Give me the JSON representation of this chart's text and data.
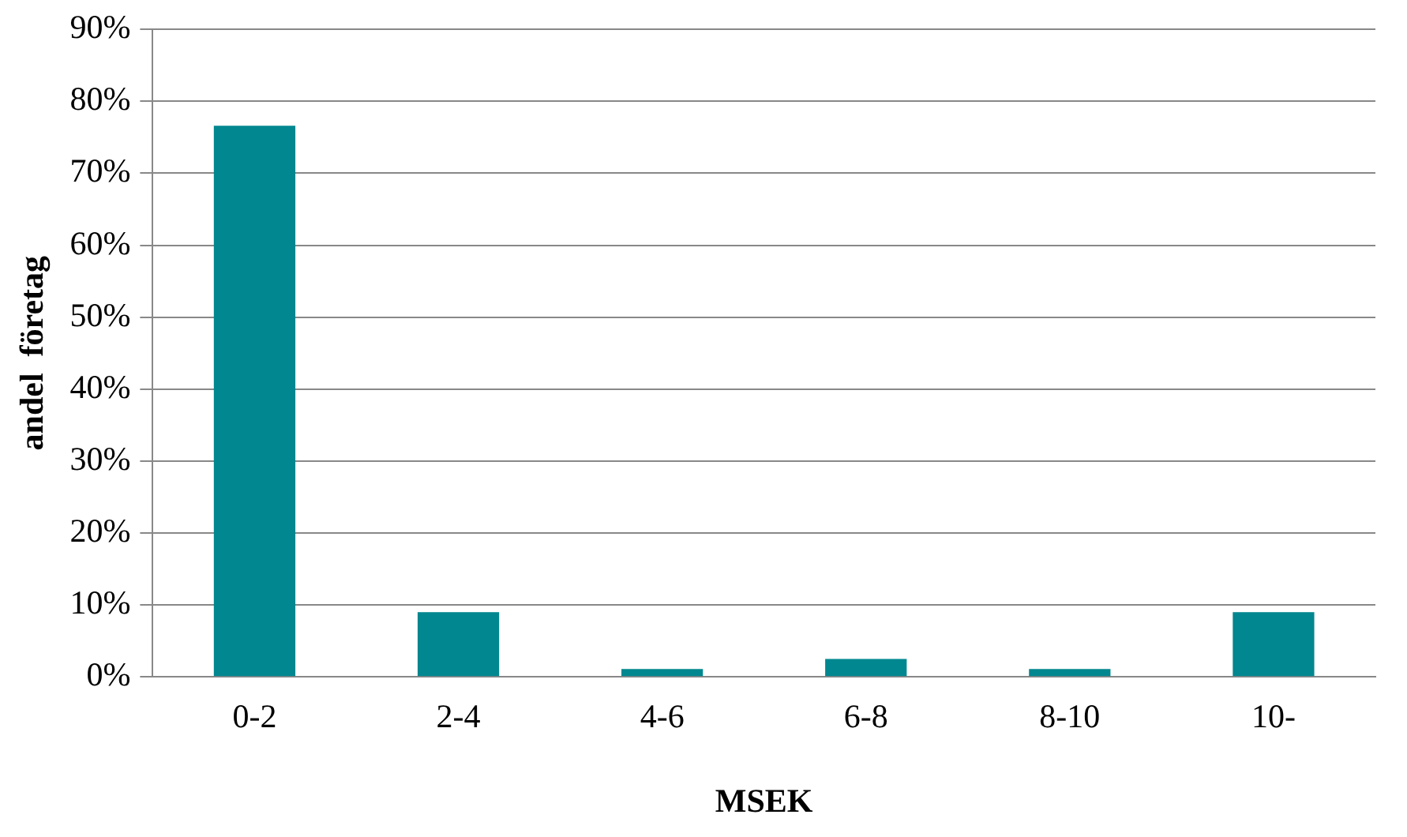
{
  "chart_data": {
    "type": "bar",
    "xlabel": "MSEK",
    "ylabel": "andel  företag",
    "categories": [
      "0-2",
      "2-4",
      "4-6",
      "6-8",
      "8-10",
      "10-"
    ],
    "values": [
      76.6,
      9.0,
      1.1,
      2.5,
      1.1,
      9.0
    ],
    "color": "#00878f",
    "ylim": [
      0,
      90
    ],
    "yticks": [
      {
        "value": 0,
        "label": "0%"
      },
      {
        "value": 10,
        "label": "10%"
      },
      {
        "value": 20,
        "label": "20%"
      },
      {
        "value": 30,
        "label": "30%"
      },
      {
        "value": 40,
        "label": "40%"
      },
      {
        "value": 50,
        "label": "50%"
      },
      {
        "value": 60,
        "label": "60%"
      },
      {
        "value": 70,
        "label": "70%"
      },
      {
        "value": 80,
        "label": "80%"
      },
      {
        "value": 90,
        "label": "90%"
      }
    ],
    "grid": "y",
    "legend": false
  }
}
